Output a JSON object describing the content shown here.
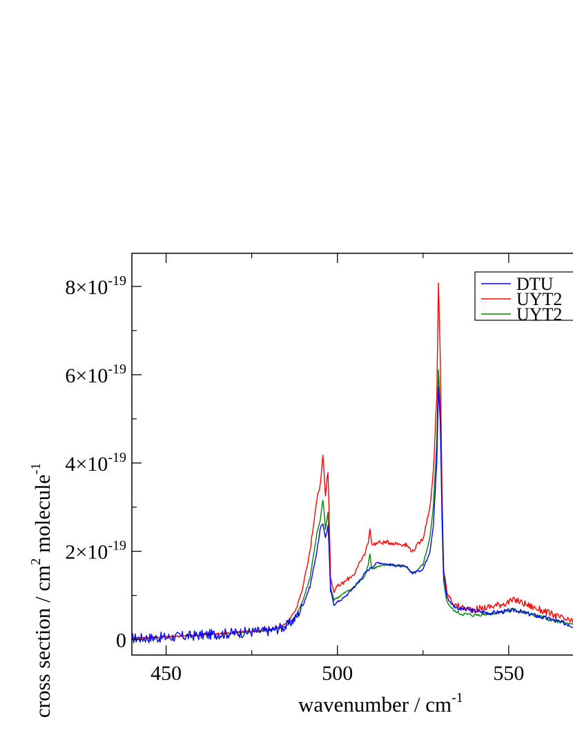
{
  "chart_data": {
    "type": "line",
    "xlabel": "wavenumber / cm",
    "xlabel_superscript": "-1",
    "ylabel": "cross section / cm",
    "ylabel_superscript_1": "2",
    "ylabel_mid": " molecule",
    "ylabel_superscript_2": "-1",
    "xlim": [
      440,
      573
    ],
    "ylim": [
      -3.5e-20,
      8.75e-19
    ],
    "x_major_ticks": [
      {
        "value": 450,
        "label": "450"
      },
      {
        "value": 500,
        "label": "500"
      },
      {
        "value": 550,
        "label": "550"
      }
    ],
    "x_minor_ticks": [
      475,
      525
    ],
    "y_major_ticks": [
      {
        "value": 0,
        "mantissa": "0",
        "exponent": ""
      },
      {
        "value": 2e-19,
        "mantissa": "2×10",
        "exponent": "-19"
      },
      {
        "value": 4e-19,
        "mantissa": "4×10",
        "exponent": "-19"
      },
      {
        "value": 6e-19,
        "mantissa": "6×10",
        "exponent": "-19"
      },
      {
        "value": 8e-19,
        "mantissa": "8×10",
        "exponent": "-19"
      }
    ],
    "y_minor_ticks": [
      1e-19,
      3e-19,
      5e-19,
      7e-19
    ],
    "grid": false,
    "legend": "top-right",
    "series": [
      {
        "name": "DTU",
        "color": "#0000ff",
        "noise_low": 1.2e-20,
        "noise_high": 5e-21,
        "x": [
          440,
          450,
          460,
          470,
          480,
          485,
          488,
          490,
          492,
          493,
          494,
          495,
          495.8,
          496.5,
          497.3,
          498,
          499,
          500,
          502,
          505,
          508,
          510,
          512,
          515,
          520,
          522,
          525,
          527,
          528,
          529,
          529.5,
          530,
          530.5,
          531,
          532,
          534,
          536,
          540,
          545,
          550,
          552,
          555,
          560,
          565,
          570,
          573
        ],
        "y": [
          3e-21,
          5e-21,
          1e-20,
          1.5e-20,
          2e-20,
          3e-20,
          5e-20,
          8e-20,
          1.2e-19,
          1.6e-19,
          2e-19,
          2.5e-19,
          2.65e-19,
          2.3e-19,
          2.6e-19,
          1.1e-19,
          8e-20,
          8.5e-20,
          9.5e-20,
          1.2e-19,
          1.5e-19,
          1.65e-19,
          1.75e-19,
          1.7e-19,
          1.65e-19,
          1.5e-19,
          1.6e-19,
          2e-19,
          2.6e-19,
          4e-19,
          5.7e-19,
          5e-19,
          3e-19,
          1.5e-19,
          9.5e-20,
          7.5e-20,
          7e-20,
          6.5e-20,
          6e-20,
          6.5e-20,
          6.7e-20,
          6e-20,
          5e-20,
          4e-20,
          2.8e-20,
          2.2e-20
        ]
      },
      {
        "name": "UYT2",
        "color": "#ff0000",
        "noise_low": 2e-21,
        "noise_high": 8e-21,
        "x": [
          440,
          450,
          460,
          470,
          480,
          485,
          488,
          490,
          492,
          493,
          494,
          495,
          495.8,
          496.5,
          497.3,
          498,
          499,
          500,
          502,
          505,
          507,
          508,
          509,
          509.5,
          510,
          512,
          515,
          520,
          522,
          525,
          527,
          528,
          529,
          529.5,
          530,
          530.5,
          531,
          532,
          534,
          536,
          540,
          545,
          550,
          552,
          555,
          560,
          565,
          570,
          573
        ],
        "y": [
          3e-21,
          6e-21,
          1.1e-20,
          1.6e-20,
          2.2e-20,
          3.5e-20,
          7e-20,
          1.2e-19,
          2e-19,
          2.6e-19,
          3.2e-19,
          3.5e-19,
          4.2e-19,
          3.3e-19,
          3.85e-19,
          1.4e-19,
          1.1e-19,
          1.2e-19,
          1.3e-19,
          1.5e-19,
          1.8e-19,
          1.95e-19,
          2.2e-19,
          2.55e-19,
          2.15e-19,
          2.2e-19,
          2.2e-19,
          2.15e-19,
          2e-19,
          2.3e-19,
          3e-19,
          3.8e-19,
          5.5e-19,
          8.05e-19,
          6.5e-19,
          3.5e-19,
          1.6e-19,
          1.05e-19,
          8e-20,
          7.2e-20,
          6.8e-20,
          7.5e-20,
          8.5e-20,
          9e-20,
          8e-20,
          6.5e-20,
          5e-20,
          3.5e-20,
          2.5e-20
        ]
      },
      {
        "name": "UYT2",
        "color": "#008000",
        "noise_low": 1e-21,
        "noise_high": 4e-21,
        "x": [
          440,
          450,
          460,
          470,
          480,
          485,
          488,
          490,
          492,
          493,
          494,
          495,
          495.8,
          496.5,
          497.3,
          498,
          499,
          500,
          502,
          505,
          507,
          508,
          509,
          509.5,
          510,
          512,
          515,
          520,
          522,
          525,
          527,
          528,
          529,
          529.5,
          530,
          530.5,
          531,
          532,
          534,
          536,
          540,
          545,
          550,
          552,
          555,
          560,
          565,
          570,
          573
        ],
        "y": [
          3e-21,
          6e-21,
          1e-20,
          1.5e-20,
          2e-20,
          3e-20,
          5.5e-20,
          9e-20,
          1.4e-19,
          1.9e-19,
          2.4e-19,
          2.7e-19,
          3.2e-19,
          2.5e-19,
          2.9e-19,
          1.2e-19,
          9e-20,
          9.5e-20,
          1.05e-19,
          1.2e-19,
          1.35e-19,
          1.45e-19,
          1.7e-19,
          1.95e-19,
          1.6e-19,
          1.65e-19,
          1.7e-19,
          1.65e-19,
          1.5e-19,
          1.7e-19,
          2.3e-19,
          3e-19,
          4.5e-19,
          6.1e-19,
          5.2e-19,
          2.8e-19,
          1.3e-19,
          8.5e-20,
          6.5e-20,
          5.8e-20,
          5.5e-20,
          6e-20,
          6.5e-20,
          6.7e-20,
          6e-20,
          5e-20,
          4e-20,
          3e-20,
          2.2e-20
        ]
      }
    ]
  }
}
